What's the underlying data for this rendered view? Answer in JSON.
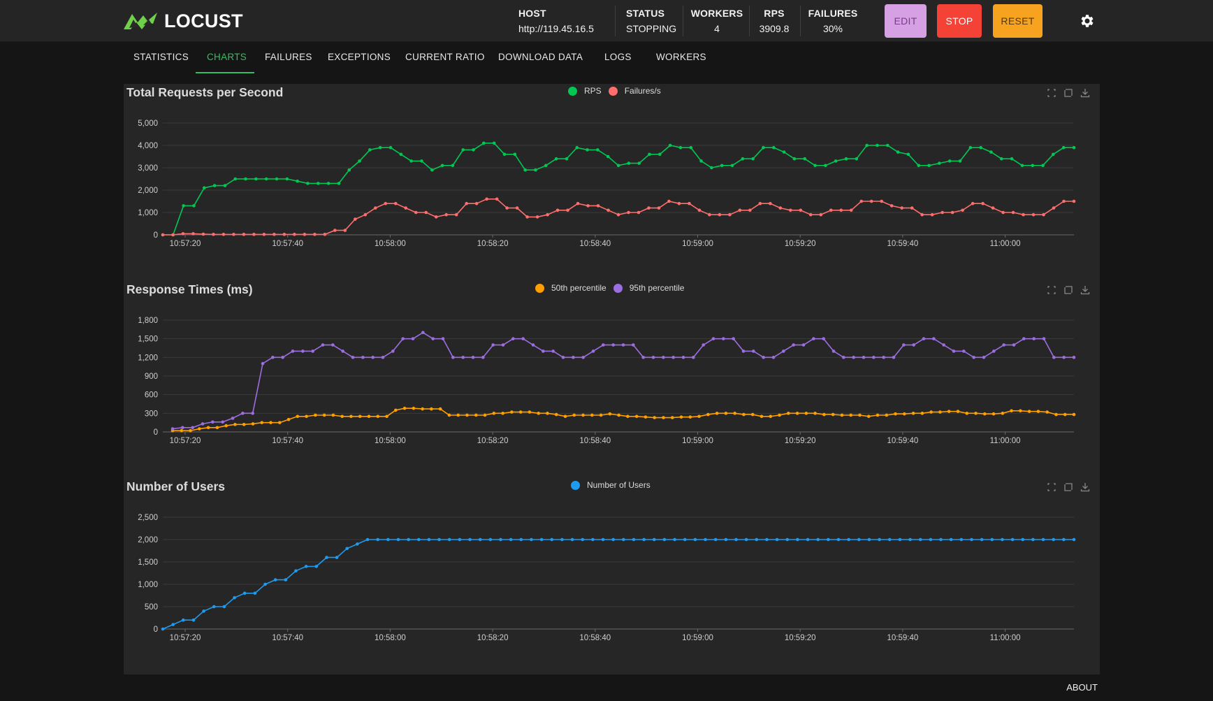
{
  "app": {
    "brand": "LOCUST"
  },
  "header": {
    "stats": [
      {
        "label": "HOST",
        "value": "http://119.45.16.5"
      },
      {
        "label": "STATUS",
        "value": "STOPPING"
      },
      {
        "label": "WORKERS",
        "value": "4"
      },
      {
        "label": "RPS",
        "value": "3909.8"
      },
      {
        "label": "FAILURES",
        "value": "30%"
      }
    ],
    "buttons": {
      "edit": "EDIT",
      "stop": "STOP",
      "reset": "RESET"
    },
    "settings_icon": "gear-icon"
  },
  "tabs": [
    {
      "label": "STATISTICS"
    },
    {
      "label": "CHARTS",
      "active": true
    },
    {
      "label": "FAILURES"
    },
    {
      "label": "EXCEPTIONS"
    },
    {
      "label": "CURRENT RATIO"
    },
    {
      "label": "DOWNLOAD DATA"
    },
    {
      "label": "LOGS"
    },
    {
      "label": "WORKERS"
    }
  ],
  "footer": {
    "about": "ABOUT"
  },
  "colors": {
    "rps": "#00c853",
    "failures": "#ff6d6d",
    "p50": "#ff9f00",
    "p95": "#9c6ee0",
    "users": "#1e9bf0",
    "accent": "#2ec060"
  },
  "chart_data": [
    {
      "type": "line",
      "title": "Total Requests per Second",
      "x_ticks": [
        "10:57:20",
        "10:57:40",
        "10:58:00",
        "10:58:20",
        "10:58:40",
        "10:59:00",
        "10:59:20",
        "10:59:40",
        "11:00:00"
      ],
      "y_ticks": [
        "0",
        "1,000",
        "2,000",
        "3,000",
        "4,000",
        "5,000"
      ],
      "ylim": [
        0,
        5000
      ],
      "legend_position": "top-center",
      "grid": true,
      "series": [
        {
          "name": "RPS",
          "color": "#00c853",
          "values": [
            0,
            0,
            1300,
            1300,
            2100,
            2200,
            2200,
            2500,
            2500,
            2500,
            2500,
            2500,
            2500,
            2400,
            2300,
            2300,
            2300,
            2300,
            2900,
            3300,
            3800,
            3900,
            3900,
            3600,
            3300,
            3300,
            2900,
            3100,
            3100,
            3800,
            3800,
            4100,
            4100,
            3600,
            3600,
            2900,
            2900,
            3100,
            3400,
            3400,
            3900,
            3800,
            3800,
            3500,
            3100,
            3200,
            3200,
            3600,
            3600,
            4000,
            3900,
            3900,
            3300,
            3000,
            3100,
            3100,
            3400,
            3400,
            3900,
            3900,
            3700,
            3400,
            3400,
            3100,
            3100,
            3300,
            3400,
            3400,
            4000,
            4000,
            4000,
            3700,
            3600,
            3100,
            3100,
            3200,
            3300,
            3300,
            3900,
            3900,
            3700,
            3400,
            3400,
            3100,
            3100,
            3100,
            3600,
            3900,
            3900
          ]
        },
        {
          "name": "Failures/s",
          "color": "#ff6d6d",
          "values": [
            0,
            0,
            50,
            50,
            30,
            20,
            20,
            20,
            20,
            20,
            20,
            20,
            20,
            20,
            20,
            20,
            20,
            200,
            200,
            700,
            900,
            1200,
            1400,
            1400,
            1200,
            1000,
            1000,
            800,
            900,
            900,
            1400,
            1400,
            1600,
            1600,
            1200,
            1200,
            800,
            800,
            900,
            1100,
            1100,
            1400,
            1300,
            1300,
            1100,
            900,
            1000,
            1000,
            1200,
            1200,
            1500,
            1400,
            1400,
            1100,
            900,
            900,
            900,
            1100,
            1100,
            1400,
            1400,
            1200,
            1100,
            1100,
            900,
            900,
            1100,
            1100,
            1100,
            1500,
            1500,
            1500,
            1300,
            1200,
            1200,
            900,
            900,
            1000,
            1000,
            1100,
            1400,
            1400,
            1200,
            1000,
            1000,
            900,
            900,
            900,
            1200,
            1500,
            1500
          ]
        }
      ]
    },
    {
      "type": "line",
      "title": "Response Times (ms)",
      "x_ticks": [
        "10:57:20",
        "10:57:40",
        "10:58:00",
        "10:58:20",
        "10:58:40",
        "10:59:00",
        "10:59:20",
        "10:59:40",
        "11:00:00"
      ],
      "y_ticks": [
        "0",
        "300",
        "600",
        "900",
        "1,200",
        "1,500",
        "1,800"
      ],
      "ylim": [
        0,
        1800
      ],
      "legend_position": "top-center",
      "grid": true,
      "series": [
        {
          "name": "50th percentile",
          "color": "#ff9f00",
          "values": [
            20,
            20,
            20,
            50,
            70,
            70,
            100,
            120,
            120,
            130,
            150,
            150,
            150,
            200,
            250,
            250,
            270,
            270,
            270,
            250,
            250,
            250,
            250,
            250,
            250,
            350,
            380,
            380,
            370,
            370,
            370,
            270,
            270,
            270,
            270,
            270,
            300,
            300,
            320,
            320,
            320,
            300,
            300,
            280,
            250,
            270,
            270,
            270,
            270,
            290,
            270,
            250,
            250,
            240,
            230,
            230,
            230,
            240,
            240,
            250,
            280,
            300,
            300,
            300,
            280,
            280,
            250,
            250,
            270,
            300,
            300,
            300,
            300,
            280,
            280,
            270,
            270,
            270,
            250,
            270,
            270,
            290,
            290,
            300,
            300,
            320,
            320,
            330,
            330,
            300,
            300,
            290,
            290,
            300,
            340,
            340,
            330,
            330,
            320,
            280,
            280,
            280
          ]
        },
        {
          "name": "95th percentile",
          "color": "#9c6ee0",
          "values": [
            50,
            70,
            70,
            130,
            160,
            160,
            220,
            300,
            300,
            1100,
            1200,
            1200,
            1300,
            1300,
            1300,
            1400,
            1400,
            1300,
            1200,
            1200,
            1200,
            1200,
            1300,
            1500,
            1500,
            1600,
            1500,
            1500,
            1200,
            1200,
            1200,
            1200,
            1400,
            1400,
            1500,
            1500,
            1400,
            1300,
            1300,
            1200,
            1200,
            1200,
            1300,
            1400,
            1400,
            1400,
            1400,
            1200,
            1200,
            1200,
            1200,
            1200,
            1200,
            1400,
            1500,
            1500,
            1500,
            1300,
            1300,
            1200,
            1200,
            1300,
            1400,
            1400,
            1500,
            1500,
            1300,
            1200,
            1200,
            1200,
            1200,
            1200,
            1200,
            1400,
            1400,
            1500,
            1500,
            1400,
            1300,
            1300,
            1200,
            1200,
            1300,
            1400,
            1400,
            1500,
            1500,
            1500,
            1200,
            1200,
            1200
          ]
        }
      ]
    },
    {
      "type": "line",
      "title": "Number of Users",
      "x_ticks": [
        "10:57:20",
        "10:57:40",
        "10:58:00",
        "10:58:20",
        "10:58:40",
        "10:59:00",
        "10:59:20",
        "10:59:40",
        "11:00:00"
      ],
      "y_ticks": [
        "0",
        "500",
        "1,000",
        "1,500",
        "2,000",
        "2,500"
      ],
      "ylim": [
        0,
        2500
      ],
      "legend_position": "top-center",
      "grid": true,
      "series": [
        {
          "name": "Number of Users",
          "color": "#1e9bf0",
          "values": [
            0,
            100,
            200,
            200,
            400,
            500,
            500,
            700,
            800,
            800,
            1000,
            1100,
            1100,
            1300,
            1400,
            1400,
            1600,
            1600,
            1800,
            1900,
            2000,
            2000,
            2000,
            2000,
            2000,
            2000,
            2000,
            2000,
            2000,
            2000,
            2000,
            2000,
            2000,
            2000,
            2000,
            2000,
            2000,
            2000,
            2000,
            2000,
            2000,
            2000,
            2000,
            2000,
            2000,
            2000,
            2000,
            2000,
            2000,
            2000,
            2000,
            2000,
            2000,
            2000,
            2000,
            2000,
            2000,
            2000,
            2000,
            2000,
            2000,
            2000,
            2000,
            2000,
            2000,
            2000,
            2000,
            2000,
            2000,
            2000,
            2000,
            2000,
            2000,
            2000,
            2000,
            2000,
            2000,
            2000,
            2000,
            2000,
            2000,
            2000,
            2000,
            2000,
            2000,
            2000,
            2000,
            2000,
            2000,
            2000
          ]
        }
      ]
    }
  ]
}
